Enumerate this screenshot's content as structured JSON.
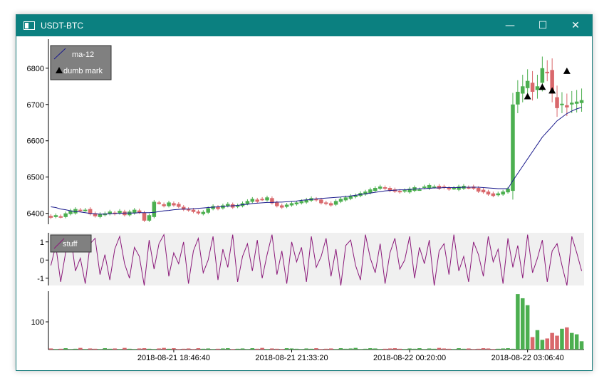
{
  "window": {
    "title": "USDT-BTC",
    "controls": {
      "minimize": "—",
      "maximize": "☐",
      "close": "✕"
    }
  },
  "colors": {
    "up": "#4caf50",
    "down": "#d9686c",
    "ma_line": "#1a1a8c",
    "stuff_line": "#8b1a7a",
    "oscillator_bg": "#f0f0f0",
    "legend_bg": "#808080"
  },
  "chart_data": [
    {
      "type": "candlestick",
      "title": "",
      "yticks": [
        6400,
        6500,
        6600,
        6700,
        6800
      ],
      "ylim": [
        6370,
        6880
      ],
      "legend": {
        "placement": "top-left",
        "entries": [
          "ma-12",
          "dumb mark"
        ]
      },
      "candles_open": [
        6393,
        6390,
        6392,
        6390,
        6398,
        6400,
        6410,
        6408,
        6412,
        6400,
        6390,
        6395,
        6398,
        6402,
        6400,
        6405,
        6395,
        6400,
        6408,
        6402,
        6380,
        6390,
        6430,
        6425,
        6420,
        6428,
        6426,
        6418,
        6412,
        6410,
        6405,
        6398,
        6402,
        6412,
        6418,
        6414,
        6420,
        6425,
        6418,
        6420,
        6426,
        6432,
        6438,
        6440,
        6436,
        6442,
        6430,
        6422,
        6418,
        6422,
        6425,
        6428,
        6430,
        6435,
        6440,
        6438,
        6430,
        6428,
        6424,
        6432,
        6436,
        6440,
        6445,
        6448,
        6452,
        6456,
        6462,
        6468,
        6472,
        6470,
        6466,
        6462,
        6460,
        6458,
        6462,
        6466,
        6470,
        6468,
        6472,
        6476,
        6474,
        6470,
        6468,
        6465,
        6468,
        6472,
        6474,
        6470,
        6465,
        6460,
        6455,
        6450,
        6452,
        6458,
        6462,
        6700,
        6730,
        6745,
        6760,
        6740,
        6760,
        6790,
        6795,
        6720,
        6700,
        6698,
        6700,
        6702,
        6704
      ],
      "candles_close": [
        6388,
        6395,
        6390,
        6400,
        6408,
        6412,
        6408,
        6410,
        6398,
        6392,
        6398,
        6400,
        6405,
        6398,
        6407,
        6395,
        6405,
        6410,
        6402,
        6380,
        6395,
        6432,
        6428,
        6420,
        6430,
        6422,
        6418,
        6410,
        6408,
        6404,
        6400,
        6404,
        6414,
        6420,
        6412,
        6422,
        6426,
        6416,
        6422,
        6428,
        6434,
        6440,
        6432,
        6438,
        6444,
        6428,
        6420,
        6416,
        6424,
        6428,
        6430,
        6434,
        6438,
        6442,
        6436,
        6428,
        6426,
        6422,
        6434,
        6440,
        6444,
        6448,
        6450,
        6456,
        6460,
        6466,
        6470,
        6474,
        6468,
        6462,
        6460,
        6458,
        6464,
        6468,
        6472,
        6466,
        6474,
        6478,
        6474,
        6468,
        6470,
        6466,
        6470,
        6474,
        6476,
        6470,
        6468,
        6460,
        6458,
        6452,
        6448,
        6455,
        6460,
        6468,
        6700,
        6735,
        6750,
        6765,
        6735,
        6750,
        6800,
        6788,
        6730,
        6690,
        6702,
        6692,
        6705,
        6708,
        6712
      ],
      "ma_12": [
        6418,
        6416,
        6412,
        6410,
        6407,
        6405,
        6404,
        6402,
        6400,
        6399,
        6398,
        6398,
        6399,
        6400,
        6400,
        6401,
        6401,
        6401,
        6402,
        6402,
        6402,
        6403,
        6405,
        6407,
        6408,
        6410,
        6411,
        6412,
        6412,
        6413,
        6414,
        6415,
        6416,
        6417,
        6418,
        6419,
        6420,
        6421,
        6422,
        6424,
        6425,
        6427,
        6428,
        6429,
        6430,
        6430,
        6431,
        6431,
        6432,
        6433,
        6434,
        6436,
        6437,
        6438,
        6440,
        6441,
        6442,
        6443,
        6444,
        6445,
        6447,
        6448,
        6450,
        6452,
        6454,
        6456,
        6458,
        6460,
        6462,
        6463,
        6464,
        6465,
        6465,
        6466,
        6467,
        6468,
        6468,
        6469,
        6470,
        6470,
        6471,
        6471,
        6471,
        6471,
        6472,
        6472,
        6472,
        6472,
        6471,
        6470,
        6469,
        6468,
        6468,
        6468,
        6490,
        6510,
        6530,
        6550,
        6570,
        6590,
        6610,
        6625,
        6640,
        6655,
        6665,
        6675,
        6682,
        6688,
        6692
      ],
      "dumb_mark": [
        {
          "index": 97,
          "value": 6722
        },
        {
          "index": 100,
          "value": 6748
        },
        {
          "index": 102,
          "value": 6738
        },
        {
          "index": 105,
          "value": 6792
        }
      ]
    },
    {
      "type": "line",
      "yticks": [
        -1,
        0,
        1
      ],
      "ylim": [
        -1.4,
        1.5
      ],
      "legend": {
        "placement": "top-left",
        "entries": [
          "stuff"
        ]
      },
      "values": [
        -0.3,
        0.8,
        -1.2,
        0.4,
        1.4,
        -0.6,
        0.1,
        -1.3,
        0.9,
        1.2,
        -0.8,
        0.3,
        -1.1,
        0.6,
        1.3,
        -0.2,
        -1.0,
        0.7,
        0.2,
        -1.4,
        1.1,
        -0.5,
        0.9,
        1.4,
        -0.9,
        0.4,
        -0.2,
        1.0,
        -1.3,
        0.5,
        1.2,
        -0.7,
        0.0,
        1.3,
        -1.1,
        0.6,
        -0.4,
        1.4,
        -1.2,
        0.2,
        0.9,
        -0.6,
        1.1,
        -1.0,
        0.3,
        1.4,
        -0.8,
        0.5,
        -1.3,
        1.0,
        -0.1,
        0.7,
        -1.2,
        1.3,
        -0.4,
        0.2,
        1.2,
        -0.9,
        0.6,
        -1.4,
        0.8,
        1.1,
        -0.3,
        -1.1,
        1.4,
        0.1,
        -0.7,
        0.9,
        -1.3,
        0.4,
        1.2,
        -0.5,
        0.0,
        1.3,
        -1.0,
        0.7,
        -0.2,
        1.1,
        -1.4,
        0.5,
        0.9,
        -0.8,
        1.4,
        -0.6,
        0.2,
        -1.2,
        1.0,
        0.3,
        -0.9,
        1.3,
        -0.1,
        0.6,
        -1.3,
        1.2,
        -0.4,
        0.8,
        -1.0,
        1.4,
        -0.7,
        0.1,
        1.1,
        -1.2,
        0.5,
        0.9,
        -0.3,
        -1.4,
        1.3,
        0.4,
        -0.6
      ]
    },
    {
      "type": "bar",
      "yticks": [
        100
      ],
      "ylim": [
        0,
        200
      ],
      "volumes": [
        4,
        2,
        3,
        5,
        2,
        3,
        6,
        2,
        4,
        3,
        2,
        5,
        3,
        4,
        2,
        6,
        3,
        2,
        4,
        5,
        3,
        2,
        4,
        6,
        3,
        5,
        2,
        3,
        4,
        2,
        5,
        3,
        4,
        2,
        3,
        4,
        5,
        2,
        3,
        4,
        2,
        5,
        3,
        6,
        2,
        4,
        3,
        2,
        5,
        4,
        3,
        2,
        4,
        3,
        5,
        2,
        3,
        4,
        2,
        5,
        3,
        4,
        6,
        2,
        3,
        5,
        4,
        2,
        3,
        4,
        5,
        3,
        2,
        4,
        3,
        5,
        2,
        4,
        3,
        6,
        4,
        3,
        2,
        5,
        3,
        4,
        2,
        3,
        5,
        4,
        2,
        3,
        4,
        5,
        3,
        200,
        185,
        160,
        45,
        70,
        35,
        40,
        60,
        50,
        75,
        80,
        60,
        55,
        30
      ],
      "xticks": [
        {
          "index": 25,
          "label": "2018-08-21 18:46:40"
        },
        {
          "index": 49,
          "label": "2018-08-21 21:33:20"
        },
        {
          "index": 73,
          "label": "2018-08-22 00:20:00"
        },
        {
          "index": 97,
          "label": "2018-08-22 03:06:40"
        }
      ]
    }
  ]
}
